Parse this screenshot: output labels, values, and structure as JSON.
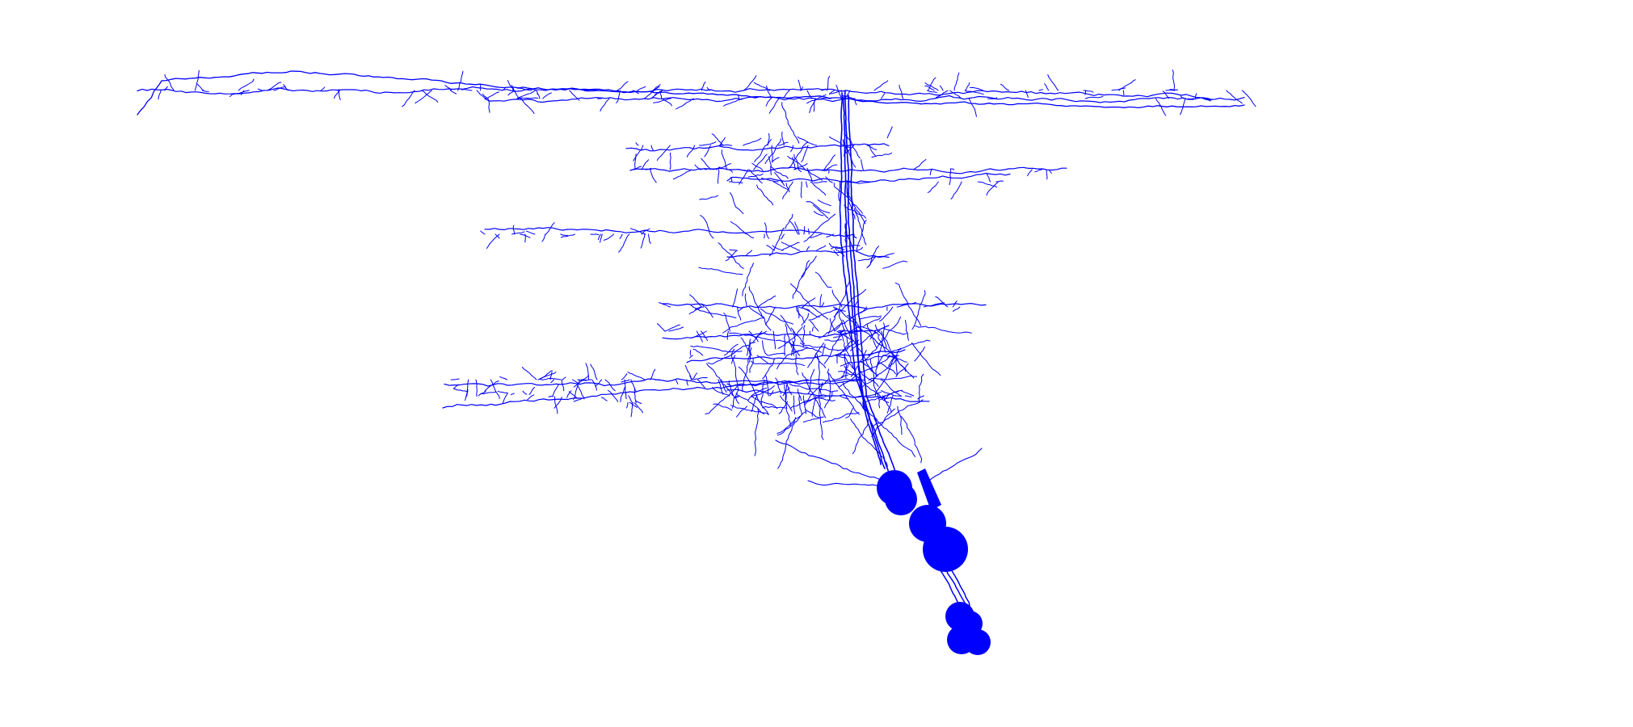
{
  "scene": {
    "subject": "neuron-morphology-rendering",
    "background_color": "#ffffff",
    "neurite_color": "#0000ff",
    "soma_color": "#0000ff"
  }
}
